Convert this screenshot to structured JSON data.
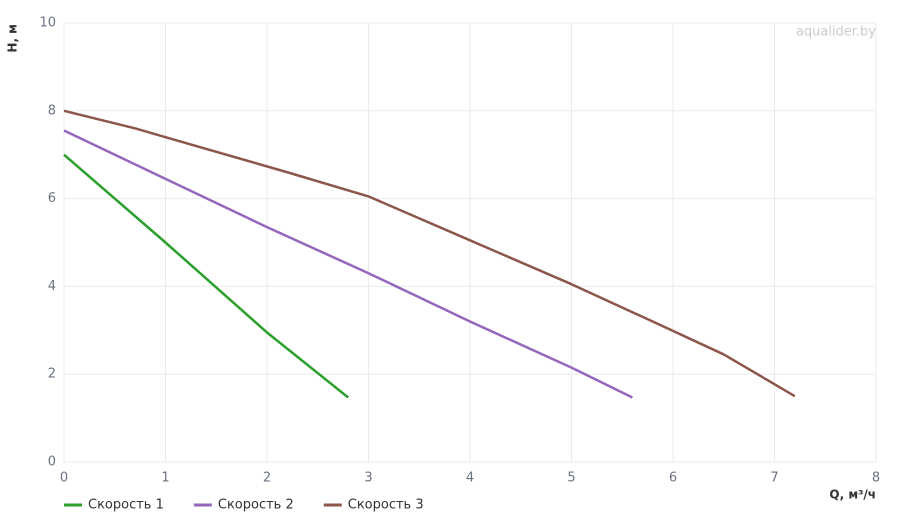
{
  "chart_data": {
    "type": "line",
    "watermark": "aqualider.by",
    "xlabel": "Q, м³/ч",
    "ylabel": "H, м",
    "xlim": [
      0,
      8
    ],
    "xticks": [
      0,
      1,
      2,
      3,
      4,
      5,
      6,
      7,
      8
    ],
    "ylim": [
      0,
      10
    ],
    "yticks": [
      0,
      2,
      4,
      6,
      8,
      10
    ],
    "grid": true,
    "legend": "bottom-left",
    "series": [
      {
        "name": "Скорость 1",
        "color": "#2ca02c",
        "x": [
          0,
          1,
          2,
          2.8
        ],
        "values": [
          7,
          5,
          2.95,
          1.47
        ]
      },
      {
        "name": "Скорость 2",
        "color": "#9467bd",
        "x": [
          0,
          1,
          2,
          3,
          4,
          5,
          5.6
        ],
        "values": [
          7.55,
          6.45,
          5.35,
          4.3,
          3.2,
          2.15,
          1.47
        ]
      },
      {
        "name": "Скорость 3",
        "color": "#8c564b",
        "x": [
          0,
          0.7,
          1,
          2.2,
          3,
          4,
          4.3,
          5,
          5.8,
          6.5,
          7.2
        ],
        "values": [
          8,
          7.6,
          7.4,
          6.6,
          6.05,
          5.05,
          4.75,
          4.05,
          3.2,
          2.45,
          1.5
        ]
      }
    ]
  }
}
